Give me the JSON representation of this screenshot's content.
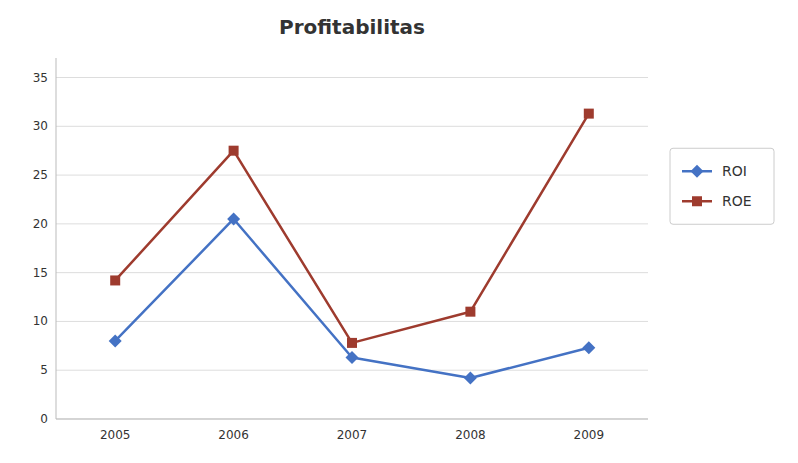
{
  "chart_data": {
    "type": "line",
    "title": "Profitabilitas",
    "categories": [
      "2005",
      "2006",
      "2007",
      "2008",
      "2009"
    ],
    "series": [
      {
        "name": "ROI",
        "color": "#4472C4",
        "marker": "diamond",
        "values": [
          8,
          20.5,
          6.3,
          4.2,
          7.3
        ]
      },
      {
        "name": "ROE",
        "color": "#9E3B2E",
        "marker": "square",
        "values": [
          14.2,
          27.5,
          7.8,
          11.0,
          31.3
        ]
      }
    ],
    "ylim": [
      0,
      37
    ],
    "yticks": [
      0,
      5,
      10,
      15,
      20,
      25,
      30,
      35
    ],
    "grid": true,
    "legend": "right"
  }
}
